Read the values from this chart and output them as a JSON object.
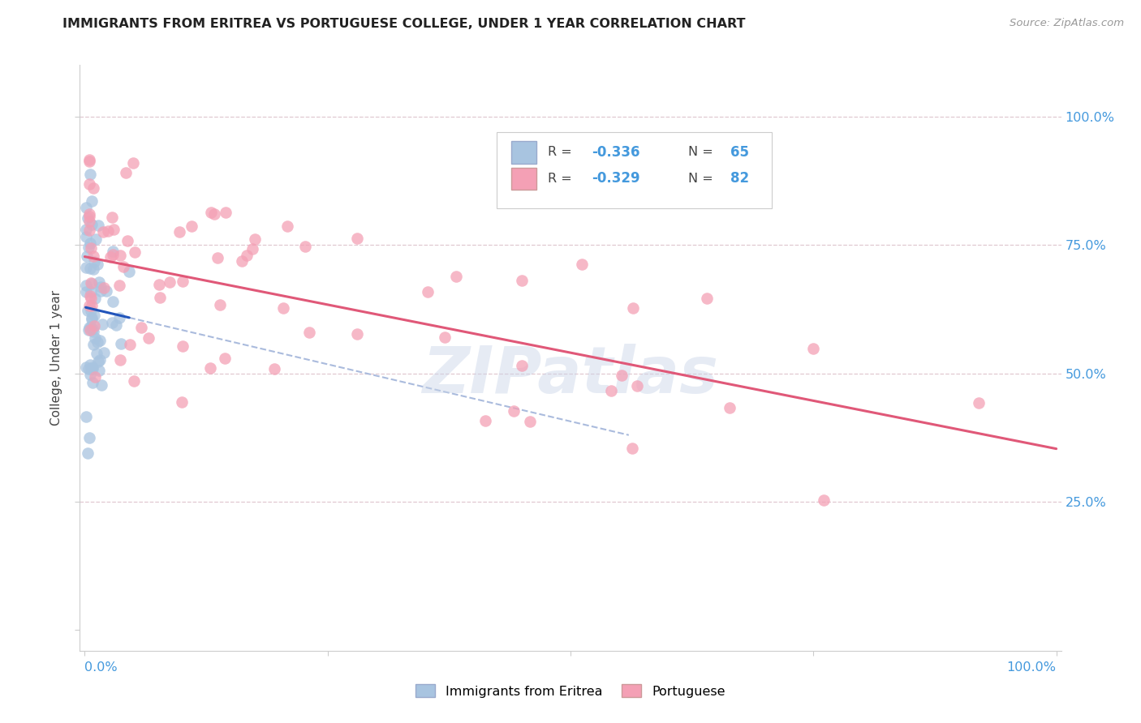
{
  "title": "IMMIGRANTS FROM ERITREA VS PORTUGUESE COLLEGE, UNDER 1 YEAR CORRELATION CHART",
  "source": "Source: ZipAtlas.com",
  "ylabel": "College, Under 1 year",
  "legend_label1": "Immigrants from Eritrea",
  "legend_label2": "Portuguese",
  "r1": -0.336,
  "n1": 65,
  "r2": -0.329,
  "n2": 82,
  "color1": "#a8c4e0",
  "color2": "#f4a0b5",
  "line1_color": "#2255bb",
  "line2_color": "#e05878",
  "dash_color": "#aabbdd",
  "watermark": "ZIPatlas",
  "background_color": "#ffffff",
  "ytick_labels": [
    "",
    "25.0%",
    "50.0%",
    "75.0%",
    "100.0%"
  ],
  "grid_color": "#e0c8d0",
  "title_color": "#222222",
  "source_color": "#999999",
  "axis_label_color": "#4499dd"
}
